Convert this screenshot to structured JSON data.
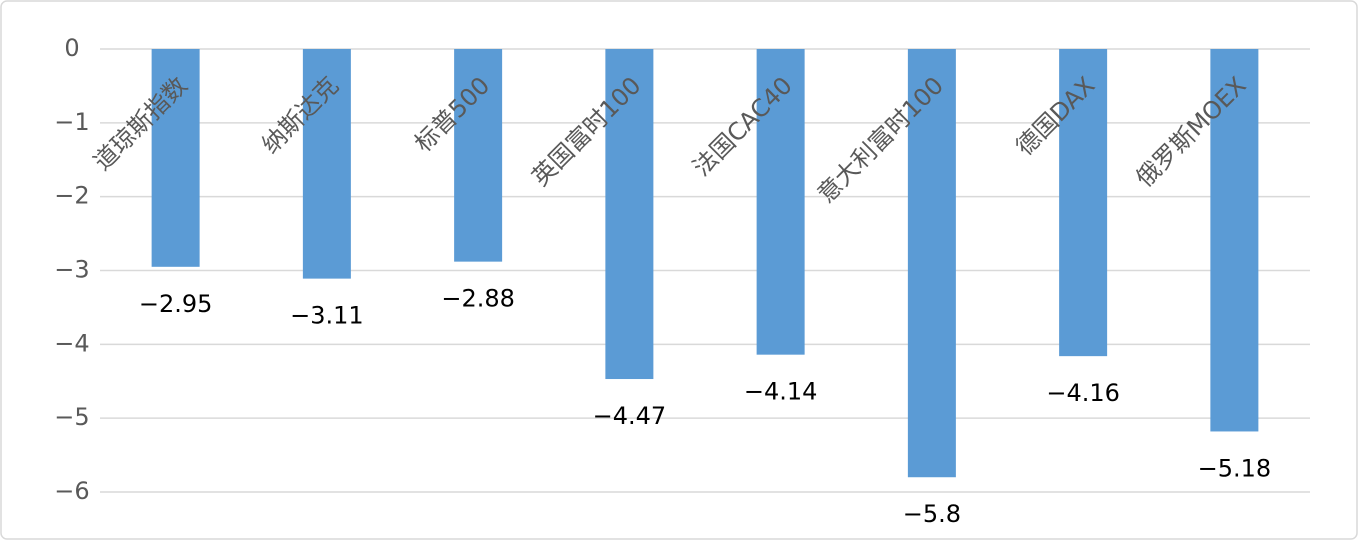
{
  "chart_data": {
    "type": "bar",
    "categories": [
      "道琼斯指数",
      "纳斯达克",
      "标普500",
      "英国富时100",
      "法国CAC40",
      "意大利富时100",
      "德国DAX",
      "俄罗斯MOEX"
    ],
    "values": [
      -2.95,
      -3.11,
      -2.88,
      -4.47,
      -4.14,
      -5.8,
      -4.16,
      -5.18
    ],
    "value_labels": [
      "−2.95",
      "−3.11",
      "−2.88",
      "−4.47",
      "−4.14",
      "−5.8",
      "−4.16",
      "−5.18"
    ],
    "color": "#5b9bd5",
    "ylim": [
      -6,
      0
    ],
    "yticks": [
      {
        "value": 0,
        "label": "0"
      },
      {
        "value": -1,
        "label": "−1"
      },
      {
        "value": -2,
        "label": "−2"
      },
      {
        "value": -3,
        "label": "−3"
      },
      {
        "value": -4,
        "label": "−4"
      },
      {
        "value": -5,
        "label": "−5"
      },
      {
        "value": -6,
        "label": "−6"
      }
    ],
    "grid": true
  }
}
